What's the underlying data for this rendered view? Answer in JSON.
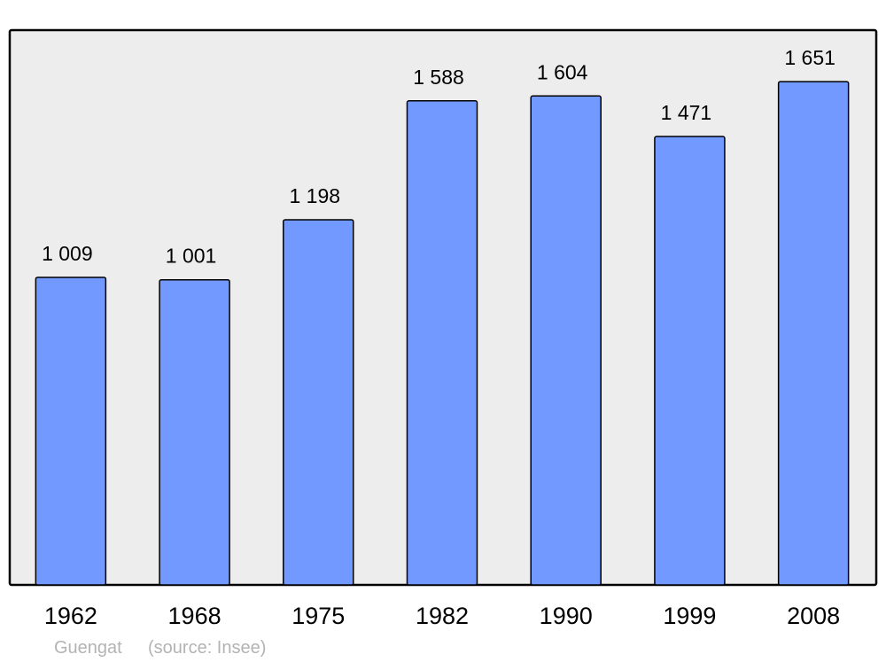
{
  "chart_data": {
    "type": "bar",
    "categories": [
      "1962",
      "1968",
      "1975",
      "1982",
      "1990",
      "1999",
      "2008"
    ],
    "values": [
      1009,
      1001,
      1198,
      1588,
      1604,
      1471,
      1651
    ],
    "value_labels": [
      "1 009",
      "1 001",
      "1 198",
      "1 588",
      "1 604",
      "1 471",
      "1 651"
    ],
    "title": "",
    "xlabel": "",
    "ylabel": "",
    "ylim": [
      0,
      1820
    ],
    "grid": false,
    "colors": {
      "bar": "#7299ff",
      "plot_background": "#ededed",
      "frame": "#000000"
    }
  },
  "footer": {
    "place": "Guengat",
    "source": "(source: Insee)"
  }
}
